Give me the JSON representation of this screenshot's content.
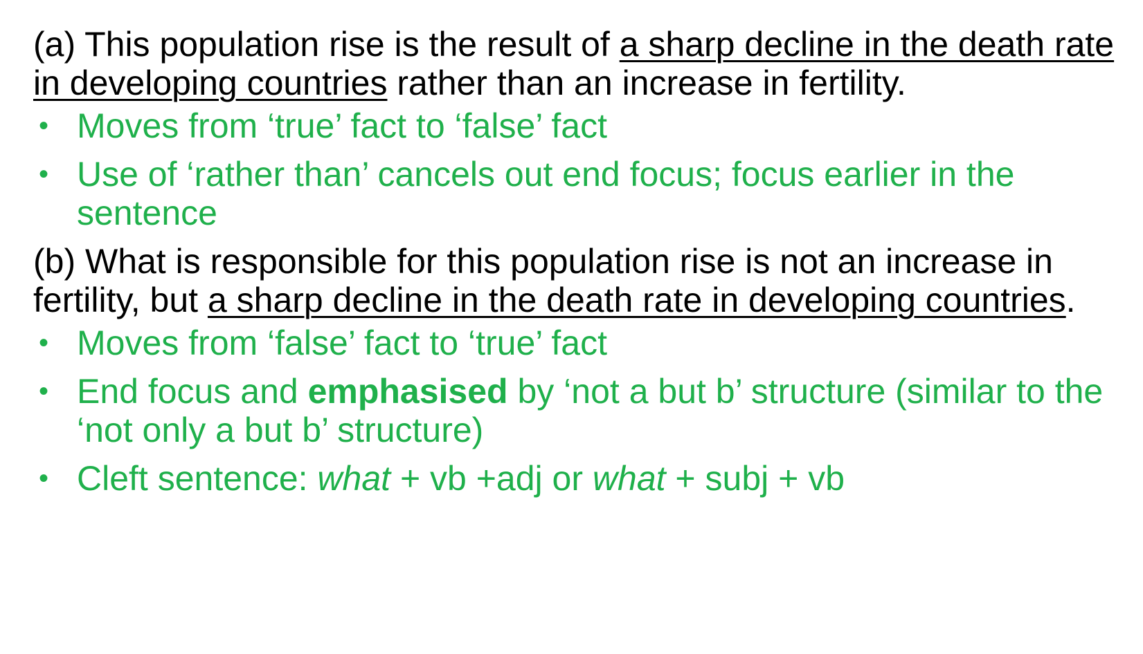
{
  "section_a": {
    "prefix": "(a) This population rise is the result of ",
    "underlined": "a sharp decline in the death rate in developing countries",
    "suffix": " rather than an increase in fertility.",
    "bullets": [
      {
        "text": "Moves from ‘true’ fact to ‘false’ fact"
      },
      {
        "text": "Use of ‘rather than’ cancels out end focus; focus earlier in the sentence"
      }
    ]
  },
  "section_b": {
    "prefix": "(b) What is responsible for this population rise is not an increase in fertility, but ",
    "underlined": "a sharp decline in the death rate in developing countries",
    "suffix": ".",
    "bullets": [
      {
        "text": "Moves from ‘false’ fact to ‘true’ fact"
      },
      {
        "part1": "End focus and ",
        "bold": "emphasised",
        "part2": " by ‘not a but b’ structure (similar to the ‘not only a but b’ structure)"
      },
      {
        "part1": "Cleft sentence: ",
        "italic1": "what",
        "part2": " + vb +adj or ",
        "italic2": "what",
        "part3": " + subj + vb"
      }
    ]
  },
  "bullet_glyph": "•",
  "colors": {
    "text": "#000000",
    "bullet_text": "#1fb04b"
  }
}
